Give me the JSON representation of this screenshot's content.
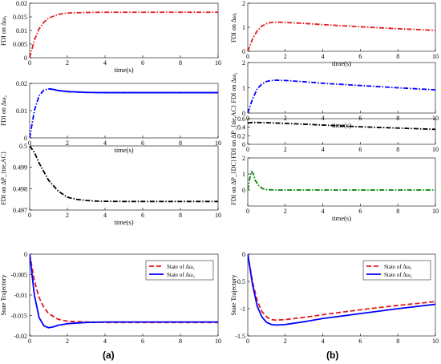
{
  "figure": {
    "panel_labels": [
      "(a)",
      "(b)"
    ]
  },
  "chart_data": [
    {
      "id": "a1",
      "type": "line",
      "ylabel": "FDI on Δω₁",
      "xlabel": "time(s)",
      "xlim": [
        0,
        10
      ],
      "ylim": [
        0,
        0.02
      ],
      "xticks": [
        "0",
        "2",
        "4",
        "6",
        "8",
        "10"
      ],
      "yticks": [
        "0",
        "0.005",
        "0.01",
        "0.015",
        "0.02"
      ],
      "ytick_values": [
        0,
        0.005,
        0.01,
        0.015,
        0.02
      ],
      "series": [
        {
          "color": "#e41a1c",
          "dash": "dashdot",
          "x": [
            0,
            0.25,
            0.5,
            0.75,
            1,
            1.5,
            2,
            3,
            4,
            6,
            8,
            10
          ],
          "y": [
            0,
            0.0065,
            0.0106,
            0.013,
            0.0145,
            0.0159,
            0.0164,
            0.0166,
            0.0167,
            0.0167,
            0.0167,
            0.0167
          ]
        }
      ]
    },
    {
      "id": "a2",
      "type": "line",
      "ylabel": "FDI on Δω₂",
      "xlabel": "time(s)",
      "xlim": [
        0,
        10
      ],
      "ylim": [
        0,
        0.02
      ],
      "xticks": [
        "0",
        "2",
        "4",
        "6",
        "8",
        "10"
      ],
      "yticks": [
        "0",
        "0.01",
        "0.02"
      ],
      "ytick_values": [
        0,
        0.01,
        0.02
      ],
      "series": [
        {
          "color": "#0000ff",
          "dash": "dashdot",
          "x": [
            0,
            0.25,
            0.5,
            0.75,
            1,
            1.25,
            1.5,
            2,
            3,
            4,
            6,
            8,
            10
          ],
          "y": [
            0,
            0.01,
            0.0155,
            0.0175,
            0.018,
            0.0178,
            0.0174,
            0.017,
            0.0167,
            0.0166,
            0.0166,
            0.0166,
            0.0166
          ]
        },
        {
          "color": "#0000ff",
          "dash": "solid",
          "x": [
            1,
            1.25,
            1.5,
            2,
            3,
            4,
            6,
            8,
            10
          ],
          "y": [
            0.018,
            0.0178,
            0.0174,
            0.017,
            0.0167,
            0.0166,
            0.0166,
            0.0166,
            0.0166
          ]
        }
      ]
    },
    {
      "id": "a3",
      "type": "line",
      "ylabel": "FDI on ΔP_{tie,AC}",
      "xlabel": "time(s)",
      "xlim": [
        0,
        10
      ],
      "ylim": [
        0.497,
        0.5
      ],
      "xticks": [
        "0",
        "2",
        "4",
        "6",
        "8",
        "10"
      ],
      "yticks": [
        "0.497",
        "0.498",
        "0.499",
        "0.5"
      ],
      "ytick_values": [
        0.497,
        0.498,
        0.499,
        0.5
      ],
      "series": [
        {
          "color": "#000000",
          "dash": "dashdot",
          "x": [
            0,
            0.25,
            0.5,
            1,
            1.5,
            2,
            2.5,
            3,
            3.5,
            4,
            5,
            6,
            8,
            10
          ],
          "y": [
            0.5,
            0.4997,
            0.4992,
            0.4984,
            0.4979,
            0.4976,
            0.4975,
            0.49745,
            0.49742,
            0.49741,
            0.4974,
            0.4974,
            0.4974,
            0.4974
          ]
        }
      ]
    },
    {
      "id": "a4",
      "type": "line",
      "ylabel": "State Trajectory",
      "xlabel": "",
      "xlim": [
        0,
        10
      ],
      "ylim": [
        -0.02,
        0
      ],
      "xticks": [
        "0",
        "2",
        "4",
        "6",
        "8",
        "10"
      ],
      "yticks": [
        "0",
        "-0.005",
        "-0.01",
        "-0.015",
        "-0.02"
      ],
      "ytick_values": [
        0,
        -0.005,
        -0.01,
        -0.015,
        -0.02
      ],
      "legend": [
        "State of Δω₁",
        "State of Δω₂"
      ],
      "legend_position": "top-right",
      "series": [
        {
          "name": "State of Δω₁",
          "color": "#e41a1c",
          "dash": "dashed",
          "x": [
            0,
            0.25,
            0.5,
            0.75,
            1,
            1.5,
            2,
            3,
            4,
            6,
            8,
            10
          ],
          "y": [
            0,
            -0.0065,
            -0.0106,
            -0.013,
            -0.0145,
            -0.0159,
            -0.0164,
            -0.0166,
            -0.0167,
            -0.0167,
            -0.0167,
            -0.0167
          ]
        },
        {
          "name": "State of Δω₂",
          "color": "#0000ff",
          "dash": "solid",
          "x": [
            0,
            0.25,
            0.5,
            0.75,
            1,
            1.25,
            1.5,
            2,
            3,
            4,
            6,
            8,
            10
          ],
          "y": [
            0,
            -0.01,
            -0.0155,
            -0.0175,
            -0.018,
            -0.0178,
            -0.0174,
            -0.017,
            -0.0167,
            -0.0166,
            -0.0166,
            -0.0166,
            -0.0166
          ]
        }
      ]
    },
    {
      "id": "b1",
      "type": "line",
      "ylabel": "FDI on Δω₁",
      "xlabel": "time(s)",
      "xlim": [
        0,
        10
      ],
      "ylim": [
        0,
        2
      ],
      "xticks": [
        "0",
        "2",
        "4",
        "6",
        "8",
        "10"
      ],
      "yticks": [
        "0",
        "1",
        "2"
      ],
      "ytick_values": [
        0,
        1,
        2
      ],
      "series": [
        {
          "color": "#e41a1c",
          "dash": "dashdot",
          "x": [
            0,
            0.25,
            0.5,
            0.75,
            1,
            1.25,
            1.5,
            2,
            3,
            4,
            6,
            8,
            10
          ],
          "y": [
            0,
            0.5,
            0.85,
            1.05,
            1.15,
            1.2,
            1.21,
            1.2,
            1.16,
            1.11,
            1.02,
            0.94,
            0.87
          ]
        }
      ]
    },
    {
      "id": "b2",
      "type": "line",
      "ylabel": "FDI on Δω₂",
      "xlabel": "time(s)",
      "xlim": [
        0,
        10
      ],
      "ylim": [
        0,
        2
      ],
      "xticks": [
        "0",
        "2",
        "4",
        "6",
        "8",
        "10"
      ],
      "yticks": [
        "0",
        "1",
        "2"
      ],
      "ytick_values": [
        0,
        1,
        2
      ],
      "series": [
        {
          "color": "#0000ff",
          "dash": "dashdot",
          "x": [
            0,
            0.25,
            0.5,
            0.75,
            1,
            1.25,
            1.5,
            2,
            3,
            4,
            6,
            8,
            10
          ],
          "y": [
            0,
            0.55,
            0.95,
            1.15,
            1.25,
            1.29,
            1.3,
            1.29,
            1.24,
            1.18,
            1.09,
            1.0,
            0.92
          ]
        }
      ]
    },
    {
      "id": "b3",
      "type": "line",
      "ylabel": "FDI on ΔP_{tie,AC}",
      "xlabel": "",
      "xlim": [
        0,
        10
      ],
      "ylim": [
        0,
        0.6
      ],
      "xticks": [
        "0",
        "2",
        "4",
        "6",
        "8",
        "10"
      ],
      "yticks": [
        "0",
        "0.2",
        "0.4",
        "0.6"
      ],
      "ytick_values": [
        0,
        0.2,
        0.4,
        0.6
      ],
      "series": [
        {
          "color": "#000000",
          "dash": "dashdot",
          "x": [
            0,
            0.25,
            0.5,
            1,
            2,
            3,
            4,
            5,
            6,
            7,
            8,
            9,
            10
          ],
          "y": [
            0.5,
            0.51,
            0.51,
            0.505,
            0.49,
            0.47,
            0.45,
            0.43,
            0.41,
            0.395,
            0.38,
            0.365,
            0.35
          ]
        }
      ]
    },
    {
      "id": "b4",
      "type": "line",
      "ylabel": "FDI on ΔP_{DC}",
      "xlabel": "time(s)",
      "xlim": [
        0,
        10
      ],
      "ylim": [
        -1,
        2
      ],
      "xticks": [
        "0",
        "2",
        "4",
        "6",
        "8",
        "10"
      ],
      "yticks": [
        "0",
        "1",
        "2"
      ],
      "ytick_values": [
        0,
        1,
        2
      ],
      "series": [
        {
          "color": "#008000",
          "dash": "dashdot",
          "x": [
            0,
            0.1,
            0.2,
            0.3,
            0.4,
            0.6,
            0.8,
            1,
            1.5,
            2,
            4,
            6,
            8,
            10
          ],
          "y": [
            0,
            0.7,
            1.15,
            1.0,
            0.6,
            0.25,
            0.08,
            0.02,
            0,
            0,
            0,
            0,
            0,
            0
          ]
        }
      ]
    },
    {
      "id": "b5",
      "type": "line",
      "ylabel": "State Trajectory",
      "xlabel": "",
      "xlim": [
        0,
        10
      ],
      "ylim": [
        -1.5,
        0
      ],
      "xticks": [
        "0",
        "2",
        "4",
        "6",
        "8",
        "10"
      ],
      "yticks": [
        "0",
        "-0.5",
        "-1",
        "-1.5"
      ],
      "ytick_values": [
        0,
        -0.5,
        -1,
        -1.5
      ],
      "legend": [
        "State of Δω₁",
        "State of Δω₂"
      ],
      "legend_position": "top-right",
      "series": [
        {
          "name": "State of Δω₁",
          "color": "#e41a1c",
          "dash": "dashed",
          "x": [
            0,
            0.25,
            0.5,
            0.75,
            1,
            1.25,
            1.5,
            2,
            3,
            4,
            6,
            8,
            10
          ],
          "y": [
            0,
            -0.5,
            -0.85,
            -1.05,
            -1.15,
            -1.2,
            -1.21,
            -1.2,
            -1.16,
            -1.11,
            -1.02,
            -0.94,
            -0.87
          ]
        },
        {
          "name": "State of Δω₂",
          "color": "#0000ff",
          "dash": "solid",
          "x": [
            0,
            0.25,
            0.5,
            0.75,
            1,
            1.25,
            1.5,
            2,
            3,
            4,
            6,
            8,
            10
          ],
          "y": [
            0,
            -0.55,
            -0.95,
            -1.15,
            -1.25,
            -1.29,
            -1.3,
            -1.29,
            -1.24,
            -1.18,
            -1.09,
            -1.0,
            -0.92
          ]
        }
      ]
    }
  ]
}
